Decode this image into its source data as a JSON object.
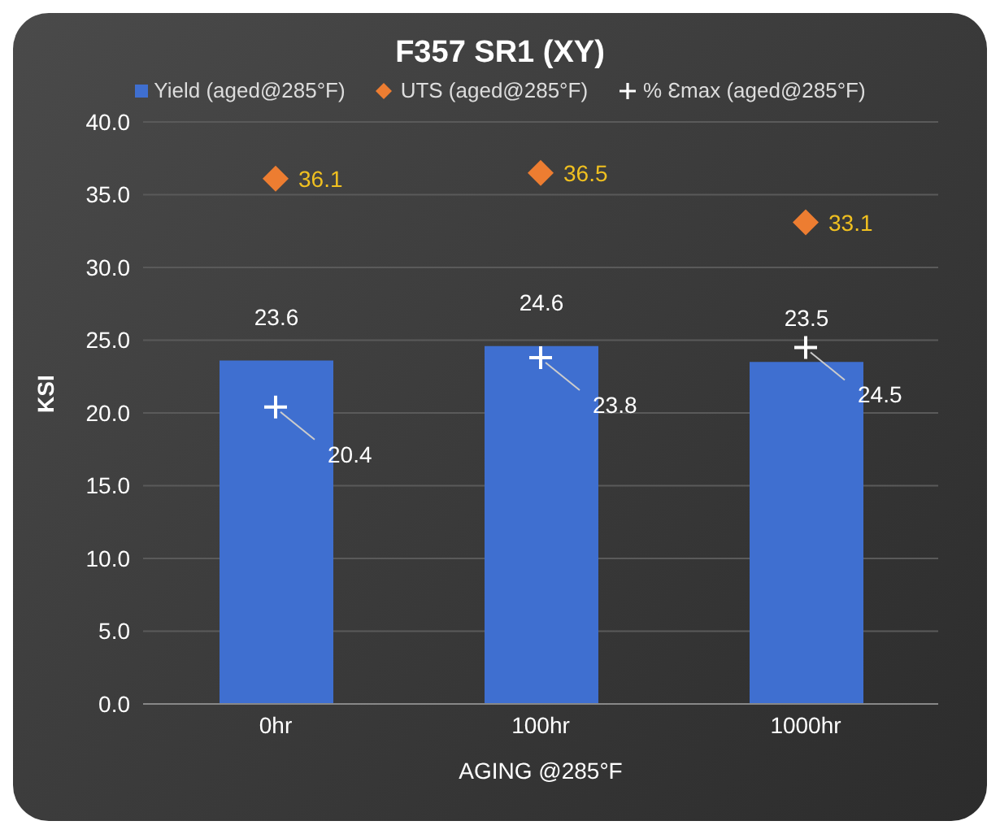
{
  "chart_data": {
    "type": "bar",
    "title": "F357 SR1 (XY)",
    "xlabel": "AGING @285°F",
    "ylabel": "KSI",
    "categories": [
      "0hr",
      "100hr",
      "1000hr"
    ],
    "series": [
      {
        "name": "Yield (aged@285°F)",
        "color": "#3f6fd0",
        "values": [
          23.6,
          24.6,
          23.5
        ]
      },
      {
        "name": "UTS (aged@285°F)",
        "type": "scatter",
        "marker": "diamond",
        "color": "#ed7d31",
        "values": [
          36.1,
          36.5,
          33.1
        ]
      },
      {
        "name": "% Ɛmax (aged@285°F)",
        "type": "scatter",
        "marker": "cross",
        "color": "#ffffff",
        "values": [
          20.4,
          23.8,
          24.5
        ]
      }
    ],
    "ylim": [
      0,
      40
    ],
    "yticks": [
      {
        "value": 0,
        "label": "0.0"
      },
      {
        "value": 5,
        "label": "5.0"
      },
      {
        "value": 10,
        "label": "10.0"
      },
      {
        "value": 15,
        "label": "15.0"
      },
      {
        "value": 20,
        "label": "20.0"
      },
      {
        "value": 25,
        "label": "25.0"
      },
      {
        "value": 30,
        "label": "30.0"
      },
      {
        "value": 35,
        "label": "35.0"
      },
      {
        "value": 40,
        "label": "40.0"
      }
    ],
    "grid": "y",
    "legend": "top",
    "data_labels": true
  }
}
